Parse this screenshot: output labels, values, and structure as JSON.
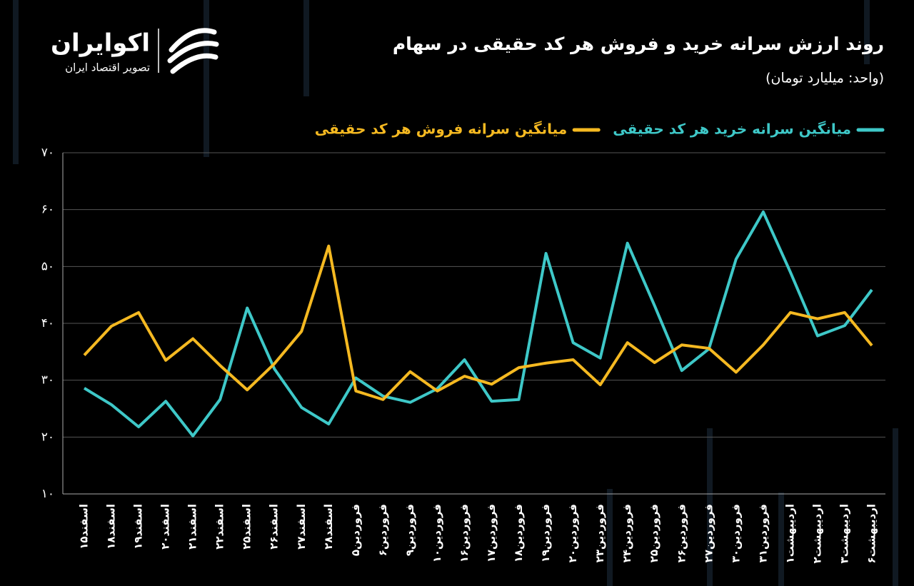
{
  "logo": {
    "name": "اکوایران",
    "tagline": "تصویر اقتصاد ایران"
  },
  "chart_data": {
    "type": "line",
    "title": "روند ارزش سرانه خرید و فروش هر کد حقیقی در سهام",
    "subtitle": "(واحد: میلیارد تومان)",
    "categories": [
      "اسفند۱۵",
      "اسفند۱۸",
      "اسفند۱۹",
      "اسفند۲۰",
      "اسفند۲۱",
      "اسفند۲۲",
      "اسفند۲۵",
      "اسفند۲۶",
      "اسفند۲۷",
      "اسفند۲۸",
      "فروردین۵",
      "فروردین۶",
      "فروردین۹",
      "فروردین۱۰",
      "فروردین۱۶",
      "فروردین۱۷",
      "فروردین۱۸",
      "فروردین۱۹",
      "فروردین۲۰",
      "فروردین۲۳",
      "فروردین۲۴",
      "فروردین۲۵",
      "فروردین۲۶",
      "فروردین۲۷",
      "فروردین۳۰",
      "فروردین۳۱",
      "اردیبهشت۱",
      "اردیبهشت۲",
      "اردیبهشت۳",
      "اردیبهشت۶"
    ],
    "series": [
      {
        "name": "میانگین سرانه خرید هر کد حقیقی",
        "color": "#3ec8c8",
        "values": [
          28.6,
          25.7,
          21.8,
          26.3,
          20.2,
          26.6,
          42.7,
          32.0,
          25.2,
          22.3,
          30.4,
          27.2,
          26.1,
          28.5,
          33.6,
          26.3,
          26.6,
          52.3,
          36.6,
          33.9,
          54.1,
          43.1,
          31.7,
          35.5,
          51.3,
          59.6,
          49.0,
          37.8,
          39.6,
          45.9
        ]
      },
      {
        "name": "میانگین سرانه فروش هر کد حقیقی",
        "color": "#f5b921",
        "values": [
          34.4,
          39.5,
          41.9,
          33.5,
          37.3,
          32.6,
          28.3,
          32.9,
          38.6,
          53.6,
          28.1,
          26.6,
          31.5,
          28.1,
          30.7,
          29.3,
          32.2,
          33.0,
          33.6,
          29.2,
          36.6,
          33.1,
          36.2,
          35.6,
          31.4,
          36.2,
          41.9,
          40.8,
          41.9,
          36.1
        ]
      }
    ],
    "ylim": [
      10,
      70
    ],
    "yticks": [
      {
        "value": 10,
        "label": "۱۰"
      },
      {
        "value": 20,
        "label": "۲۰"
      },
      {
        "value": 30,
        "label": "۳۰"
      },
      {
        "value": 40,
        "label": "۴۰"
      },
      {
        "value": 50,
        "label": "۵۰"
      },
      {
        "value": 60,
        "label": "۶۰"
      },
      {
        "value": 70,
        "label": "۷۰"
      }
    ],
    "grid": true
  }
}
